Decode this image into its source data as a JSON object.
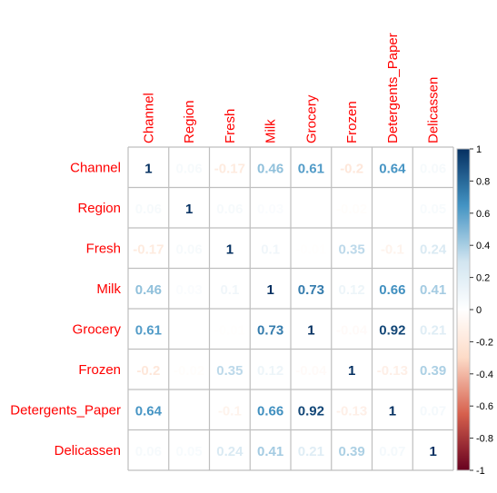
{
  "chart_data": {
    "type": "heatmap",
    "labels": [
      "Channel",
      "Region",
      "Fresh",
      "Milk",
      "Grocery",
      "Frozen",
      "Detergents_Paper",
      "Delicassen"
    ],
    "matrix": [
      [
        1,
        0.06,
        -0.17,
        0.46,
        0.61,
        -0.2,
        0.64,
        0.06
      ],
      [
        0.06,
        1,
        0.06,
        0.03,
        0.01,
        -0.02,
        -0.0,
        0.05
      ],
      [
        -0.17,
        0.06,
        1,
        0.1,
        -0.01,
        0.35,
        -0.1,
        0.24
      ],
      [
        0.46,
        0.03,
        0.1,
        1,
        0.73,
        0.12,
        0.66,
        0.41
      ],
      [
        0.61,
        0.01,
        -0.01,
        0.73,
        1,
        -0.04,
        0.92,
        0.21
      ],
      [
        -0.2,
        -0.02,
        0.35,
        0.12,
        -0.04,
        1,
        -0.13,
        0.39
      ],
      [
        0.64,
        -0.0,
        -0.1,
        0.66,
        0.92,
        -0.13,
        1,
        0.07
      ],
      [
        0.06,
        0.05,
        0.24,
        0.41,
        0.21,
        0.39,
        0.07,
        1
      ]
    ],
    "cell_labels": [
      [
        "1",
        "0.06",
        "-0.17",
        "0.46",
        "0.61",
        "-0.2",
        "0.64",
        "0.06"
      ],
      [
        "0.06",
        "1",
        "0.06",
        "0.03",
        "",
        "-0.02",
        "",
        "0.05"
      ],
      [
        "-0.17",
        "0.06",
        "1",
        "0.1",
        "-0.01",
        "0.35",
        "-0.1",
        "0.24"
      ],
      [
        "0.46",
        "0.03",
        "0.1",
        "1",
        "0.73",
        "0.12",
        "0.66",
        "0.41"
      ],
      [
        "0.61",
        "",
        "-0.01",
        "0.73",
        "1",
        "-0.04",
        "0.92",
        "0.21"
      ],
      [
        "-0.2",
        "-0.02",
        "0.35",
        "0.12",
        "-0.04",
        "1",
        "-0.13",
        "0.39"
      ],
      [
        "0.64",
        "",
        "-0.1",
        "0.66",
        "0.92",
        "-0.13",
        "1",
        "0.07"
      ],
      [
        "0.06",
        "0.05",
        "0.24",
        "0.41",
        "0.21",
        "0.39",
        "0.07",
        "1"
      ]
    ],
    "colorbar": {
      "ticks": [
        "1",
        "0.8",
        "0.6",
        "0.4",
        "0.2",
        "0",
        "-0.2",
        "-0.4",
        "-0.6",
        "-0.8",
        "-1"
      ],
      "range": [
        -1,
        1
      ]
    },
    "legend": "right",
    "label_color": "#ff0000",
    "palette": {
      "neg_strong": "#67001f",
      "neg_mid": "#d6604d",
      "neg_light": "#fddbc7",
      "zero": "#ffffff",
      "pos_light": "#d1e5f0",
      "pos_mid": "#4393c3",
      "pos_strong": "#053061"
    }
  }
}
